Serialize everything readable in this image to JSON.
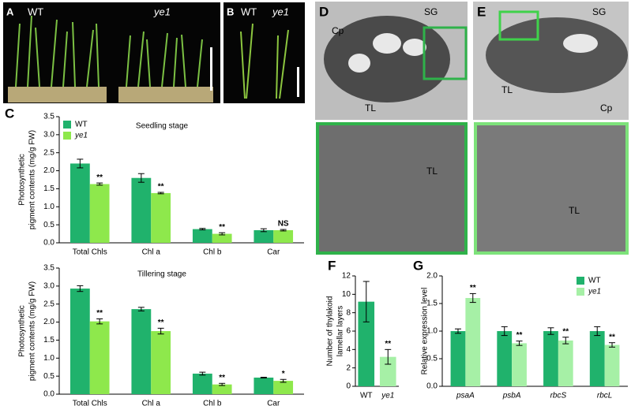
{
  "figure": {
    "panel_a": {
      "letter": "A",
      "labels": [
        "WT",
        "ye1"
      ]
    },
    "panel_b": {
      "letter": "B",
      "labels": [
        "WT",
        "ye1"
      ]
    },
    "panel_d": {
      "letter": "D",
      "labels": [
        "Cp",
        "SG",
        "TL"
      ],
      "zoom_label": "TL"
    },
    "panel_e": {
      "letter": "E",
      "labels": [
        "SG",
        "TL",
        "Cp"
      ],
      "zoom_label": "TL"
    }
  },
  "chart_data": [
    {
      "type": "bar",
      "panel": "C",
      "title": "Seedling stage",
      "ylabel": [
        "Photosynthetic",
        "pigment contents (mg/g FW)"
      ],
      "categories": [
        "Total Chls",
        "Chl a",
        "Chl b",
        "Car"
      ],
      "series": [
        {
          "name": "WT",
          "color": "#20b26c",
          "values": [
            2.2,
            1.8,
            0.38,
            0.35
          ],
          "errors": [
            0.12,
            0.12,
            0.02,
            0.04
          ]
        },
        {
          "name": "ye1",
          "color": "#8ee84c",
          "values": [
            1.63,
            1.38,
            0.25,
            0.35
          ],
          "errors": [
            0.03,
            0.02,
            0.03,
            0.02
          ],
          "annotations": [
            "**",
            "**",
            "**",
            "NS"
          ]
        }
      ],
      "ylim": [
        0,
        3.5
      ],
      "yticks": [
        {
          "value": 0,
          "label": "0.0"
        },
        0.5,
        {
          "value": 1,
          "label": "1.0"
        },
        1.5,
        {
          "value": 2,
          "label": "2.0"
        },
        2.5,
        {
          "value": 3,
          "label": "3.0"
        },
        3.5
      ],
      "legend": "upper left"
    },
    {
      "type": "bar",
      "title": "Tillering stage",
      "ylabel": [
        "Photosynthetic",
        "pigment contents (mg/g FW)"
      ],
      "categories": [
        "Total Chls",
        "Chl a",
        "Chl b",
        "Car"
      ],
      "series": [
        {
          "name": "WT",
          "color": "#20b26c",
          "values": [
            2.93,
            2.36,
            0.57,
            0.46
          ],
          "errors": [
            0.08,
            0.05,
            0.04,
            0.01
          ]
        },
        {
          "name": "ye1",
          "color": "#8ee84c",
          "values": [
            2.02,
            1.75,
            0.27,
            0.37
          ],
          "errors": [
            0.07,
            0.08,
            0.03,
            0.04
          ],
          "annotations": [
            "**",
            "**",
            "**",
            "*"
          ]
        }
      ],
      "ylim": [
        0,
        3.5
      ],
      "yticks": [
        {
          "value": 0,
          "label": "0.0"
        },
        0.5,
        {
          "value": 1,
          "label": "1.0"
        },
        1.5,
        {
          "value": 2,
          "label": "2.0"
        },
        2.5,
        {
          "value": 3,
          "label": "3.0"
        },
        3.5
      ]
    },
    {
      "type": "bar",
      "panel": "F",
      "ylabel": [
        "Number of thylakoid",
        "lamellar layers"
      ],
      "categories": [
        "WT",
        "ye1"
      ],
      "values": [
        9.2,
        3.2
      ],
      "errors": [
        2.2,
        0.8
      ],
      "annotations": [
        null,
        "**"
      ],
      "colors": [
        "#20b26c",
        "#a6f0a6"
      ],
      "ylim": [
        0,
        12
      ],
      "yticks": [
        0,
        2,
        4,
        6,
        8,
        10,
        12
      ]
    },
    {
      "type": "bar",
      "panel": "G",
      "ylabel": [
        "Relative expression level"
      ],
      "categories": [
        "psaA",
        "psbA",
        "rbcS",
        "rbcL"
      ],
      "series": [
        {
          "name": "WT",
          "color": "#20b26c",
          "values": [
            1.0,
            1.0,
            1.0,
            1.0
          ],
          "errors": [
            0.04,
            0.08,
            0.06,
            0.08
          ]
        },
        {
          "name": "ye1",
          "color": "#a6f0a6",
          "values": [
            1.6,
            0.78,
            0.83,
            0.75
          ],
          "errors": [
            0.08,
            0.04,
            0.06,
            0.04
          ],
          "annotations": [
            "**",
            "**",
            "**",
            "**"
          ]
        }
      ],
      "ylim": [
        0,
        2
      ],
      "yticks": [
        {
          "value": 0,
          "label": "0.0"
        },
        0.5,
        {
          "value": 1,
          "label": "1.0"
        },
        1.5,
        {
          "value": 2,
          "label": "2.0"
        }
      ],
      "legend": "upper right"
    }
  ]
}
